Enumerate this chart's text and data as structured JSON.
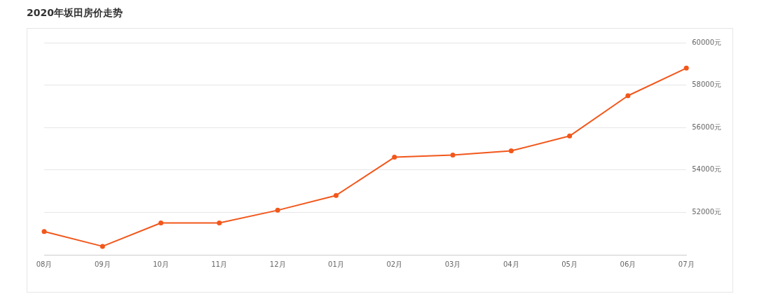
{
  "chart_data": {
    "type": "line",
    "title": "2020年坂田房价走势",
    "categories": [
      "08月",
      "09月",
      "10月",
      "11月",
      "12月",
      "01月",
      "02月",
      "03月",
      "04月",
      "05月",
      "06月",
      "07月"
    ],
    "series": [
      {
        "color": "#f2571b",
        "values": [
          51100,
          50400,
          51500,
          51500,
          52100,
          52800,
          54600,
          54700,
          54900,
          55600,
          57500,
          58800
        ]
      }
    ],
    "ylim": [
      50000,
      60000
    ],
    "yticks": [
      {
        "value": 52000,
        "label": "52000元"
      },
      {
        "value": 54000,
        "label": "54000元"
      },
      {
        "value": 56000,
        "label": "56000元"
      },
      {
        "value": 58000,
        "label": "58000元"
      },
      {
        "value": 60000,
        "label": "60000元"
      }
    ],
    "grid": "y",
    "legend": false,
    "marker": "circle",
    "line_style": "solid"
  }
}
